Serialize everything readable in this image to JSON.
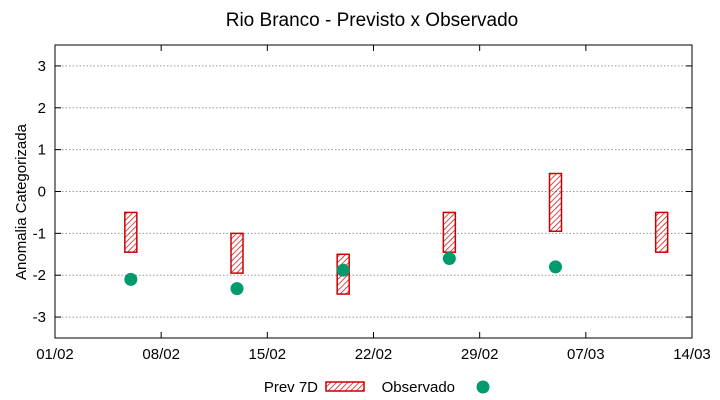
{
  "chart_data": {
    "type": "interval",
    "title": "Rio Branco - Previsto x Observado",
    "xlabel": "",
    "ylabel": "Anomalia Categorizada",
    "x_range": [
      "2008-02-01",
      "2008-03-14"
    ],
    "ylim": [
      -3.5,
      3.5
    ],
    "x_ticks": [
      "01/02",
      "08/02",
      "15/02",
      "22/02",
      "29/02",
      "07/03",
      "14/03"
    ],
    "y_ticks": [
      3,
      2,
      1,
      0,
      -1,
      -2,
      -3
    ],
    "grid": true,
    "legend_position": "bottom",
    "series": [
      {
        "name": "Prev 7D",
        "color": "#cc0000",
        "style": "hatched-bar",
        "points": [
          {
            "x": "2008-02-06",
            "low": -1.45,
            "high": -0.5
          },
          {
            "x": "2008-02-13",
            "low": -1.95,
            "high": -1.0
          },
          {
            "x": "2008-02-20",
            "low": -2.45,
            "high": -1.5
          },
          {
            "x": "2008-02-27",
            "low": -1.45,
            "high": -0.5
          },
          {
            "x": "2008-03-05",
            "low": -0.95,
            "high": 0.43
          },
          {
            "x": "2008-03-12",
            "low": -1.45,
            "high": -0.5
          }
        ]
      },
      {
        "name": "Observado",
        "color": "#009a6e",
        "style": "point",
        "points": [
          {
            "x": "2008-02-06",
            "y": -2.1
          },
          {
            "x": "2008-02-13",
            "y": -2.32
          },
          {
            "x": "2008-02-20",
            "y": -1.88
          },
          {
            "x": "2008-02-27",
            "y": -1.6
          },
          {
            "x": "2008-03-05",
            "y": -1.8
          }
        ]
      }
    ]
  }
}
